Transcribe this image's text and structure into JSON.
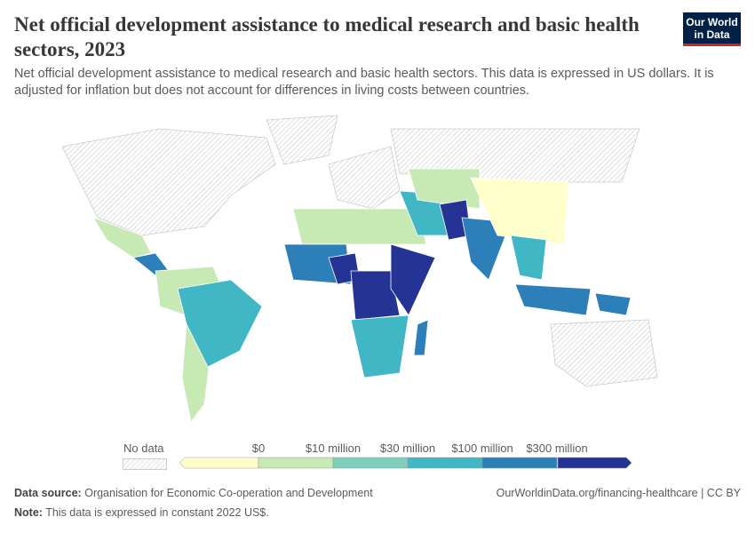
{
  "header": {
    "title": "Net official development assistance to medical research and basic health sectors, 2023",
    "subtitle": "Net official development assistance to medical research and basic health sectors. This data is expressed in US dollars. It is adjusted for inflation but does not account for differences in living costs between countries.",
    "logo": "Our World in Data"
  },
  "legend": {
    "no_data": "No data",
    "bins": [
      "$0",
      "$10 million",
      "$30 million",
      "$100 million",
      "$300 million"
    ],
    "colors": [
      "#ffffcc",
      "#c7e9b4",
      "#7fcdbb",
      "#41b6c4",
      "#2c7fb8",
      "#253494"
    ]
  },
  "map_regions": [
    {
      "name": "North America",
      "bin": -1
    },
    {
      "name": "Mexico",
      "bin": 1
    },
    {
      "name": "Central America",
      "bin": 4
    },
    {
      "name": "South America North",
      "bin": 1
    },
    {
      "name": "Brazil",
      "bin": 3
    },
    {
      "name": "Southern Cone",
      "bin": 1
    },
    {
      "name": "Europe",
      "bin": -1
    },
    {
      "name": "Russia",
      "bin": -1
    },
    {
      "name": "North Africa",
      "bin": 1
    },
    {
      "name": "West Africa",
      "bin": 4
    },
    {
      "name": "Nigeria",
      "bin": 5
    },
    {
      "name": "Central Africa",
      "bin": 5
    },
    {
      "name": "East Africa",
      "bin": 5
    },
    {
      "name": "Southern Africa",
      "bin": 3
    },
    {
      "name": "Madagascar",
      "bin": 4
    },
    {
      "name": "Middle East",
      "bin": 3
    },
    {
      "name": "Central Asia",
      "bin": 1
    },
    {
      "name": "Pakistan",
      "bin": 5
    },
    {
      "name": "India",
      "bin": 4
    },
    {
      "name": "China",
      "bin": 0
    },
    {
      "name": "Southeast Asia",
      "bin": 3
    },
    {
      "name": "Indonesia",
      "bin": 4
    },
    {
      "name": "Papua New Guinea",
      "bin": 4
    },
    {
      "name": "Australia",
      "bin": -1
    },
    {
      "name": "Greenland",
      "bin": -1
    }
  ],
  "footer": {
    "source_label": "Data source:",
    "source": "Organisation for Economic Co-operation and Development",
    "url": "OurWorldinData.org/financing-healthcare | CC BY",
    "note_label": "Note:",
    "note": "This data is expressed in constant 2022 US$."
  }
}
